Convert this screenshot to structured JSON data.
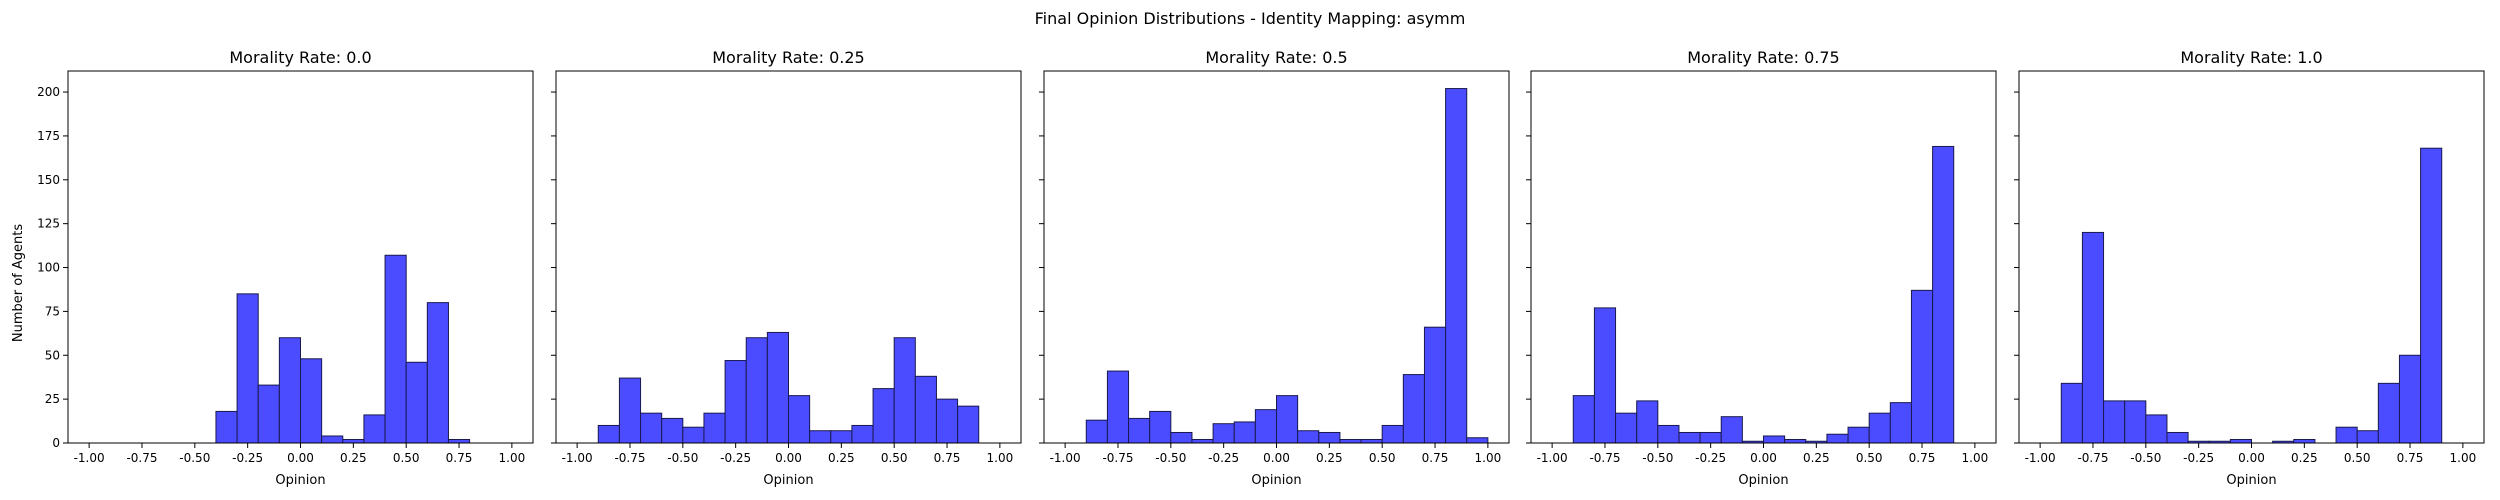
{
  "suptitle": "Final Opinion Distributions - Identity Mapping: asymm",
  "colors": {
    "bar_fill": "#4b4bff",
    "bar_edge": "#1a1a4d",
    "axis": "#000000"
  },
  "shared_ylabel": "Number of Agents",
  "chart_data": [
    {
      "type": "bar",
      "title": "Morality Rate: 0.0",
      "xlabel": "Opinion",
      "ylabel": "Number of Agents",
      "xlim": [
        -1.1,
        1.1
      ],
      "ylim": [
        0,
        212
      ],
      "xticks": [
        "-1.00",
        "-0.75",
        "-0.50",
        "-0.25",
        "0.00",
        "0.25",
        "0.50",
        "0.75",
        "1.00"
      ],
      "yticks": [
        "0",
        "25",
        "50",
        "75",
        "100",
        "125",
        "150",
        "175",
        "200"
      ],
      "bin_width": 0.1,
      "bins": [
        [
          -0.4,
          18
        ],
        [
          -0.3,
          85
        ],
        [
          -0.2,
          33
        ],
        [
          -0.1,
          60
        ],
        [
          0.0,
          48
        ],
        [
          0.1,
          4
        ],
        [
          0.2,
          2
        ],
        [
          0.3,
          16
        ],
        [
          0.4,
          107
        ],
        [
          0.5,
          46
        ],
        [
          0.6,
          80
        ],
        [
          0.7,
          2
        ]
      ]
    },
    {
      "type": "bar",
      "title": "Morality Rate: 0.25",
      "xlabel": "Opinion",
      "xlim": [
        -1.1,
        1.1
      ],
      "ylim": [
        0,
        212
      ],
      "xticks": [
        "-1.00",
        "-0.75",
        "-0.50",
        "-0.25",
        "0.00",
        "0.25",
        "0.50",
        "0.75",
        "1.00"
      ],
      "yticks": [
        "0",
        "25",
        "50",
        "75",
        "100",
        "125",
        "150",
        "175",
        "200"
      ],
      "bin_width": 0.1,
      "bins": [
        [
          -0.9,
          10
        ],
        [
          -0.8,
          37
        ],
        [
          -0.7,
          17
        ],
        [
          -0.6,
          14
        ],
        [
          -0.5,
          9
        ],
        [
          -0.4,
          17
        ],
        [
          -0.3,
          47
        ],
        [
          -0.2,
          60
        ],
        [
          -0.1,
          63
        ],
        [
          0.0,
          27
        ],
        [
          0.1,
          7
        ],
        [
          0.2,
          7
        ],
        [
          0.3,
          10
        ],
        [
          0.4,
          31
        ],
        [
          0.5,
          60
        ],
        [
          0.6,
          38
        ],
        [
          0.7,
          25
        ],
        [
          0.8,
          21
        ]
      ]
    },
    {
      "type": "bar",
      "title": "Morality Rate: 0.5",
      "xlabel": "Opinion",
      "xlim": [
        -1.1,
        1.1
      ],
      "ylim": [
        0,
        212
      ],
      "xticks": [
        "-1.00",
        "-0.75",
        "-0.50",
        "-0.25",
        "0.00",
        "0.25",
        "0.50",
        "0.75",
        "1.00"
      ],
      "yticks": [
        "0",
        "25",
        "50",
        "75",
        "100",
        "125",
        "150",
        "175",
        "200"
      ],
      "bin_width": 0.1,
      "bins": [
        [
          -0.9,
          13
        ],
        [
          -0.8,
          41
        ],
        [
          -0.7,
          14
        ],
        [
          -0.6,
          18
        ],
        [
          -0.5,
          6
        ],
        [
          -0.4,
          2
        ],
        [
          -0.3,
          11
        ],
        [
          -0.2,
          12
        ],
        [
          -0.1,
          19
        ],
        [
          0.0,
          27
        ],
        [
          0.1,
          7
        ],
        [
          0.2,
          6
        ],
        [
          0.3,
          2
        ],
        [
          0.4,
          2
        ],
        [
          0.5,
          10
        ],
        [
          0.6,
          39
        ],
        [
          0.7,
          66
        ],
        [
          0.8,
          202
        ],
        [
          0.9,
          3
        ]
      ]
    },
    {
      "type": "bar",
      "title": "Morality Rate: 0.75",
      "xlabel": "Opinion",
      "xlim": [
        -1.1,
        1.1
      ],
      "ylim": [
        0,
        212
      ],
      "xticks": [
        "-1.00",
        "-0.75",
        "-0.50",
        "-0.25",
        "0.00",
        "0.25",
        "0.50",
        "0.75",
        "1.00"
      ],
      "yticks": [
        "0",
        "25",
        "50",
        "75",
        "100",
        "125",
        "150",
        "175",
        "200"
      ],
      "bin_width": 0.1,
      "bins": [
        [
          -0.9,
          27
        ],
        [
          -0.8,
          77
        ],
        [
          -0.7,
          17
        ],
        [
          -0.6,
          24
        ],
        [
          -0.5,
          10
        ],
        [
          -0.4,
          6
        ],
        [
          -0.3,
          6
        ],
        [
          -0.2,
          15
        ],
        [
          -0.1,
          1
        ],
        [
          0.0,
          4
        ],
        [
          0.1,
          2
        ],
        [
          0.2,
          1
        ],
        [
          0.3,
          5
        ],
        [
          0.4,
          9
        ],
        [
          0.5,
          17
        ],
        [
          0.6,
          23
        ],
        [
          0.7,
          87
        ],
        [
          0.8,
          169
        ]
      ]
    },
    {
      "type": "bar",
      "title": "Morality Rate: 1.0",
      "xlabel": "Opinion",
      "xlim": [
        -1.1,
        1.1
      ],
      "ylim": [
        0,
        212
      ],
      "xticks": [
        "-1.00",
        "-0.75",
        "-0.50",
        "-0.25",
        "0.00",
        "0.25",
        "0.50",
        "0.75",
        "1.00"
      ],
      "yticks": [
        "0",
        "25",
        "50",
        "75",
        "100",
        "125",
        "150",
        "175",
        "200"
      ],
      "bin_width": 0.1,
      "bins": [
        [
          -0.9,
          34
        ],
        [
          -0.8,
          120
        ],
        [
          -0.7,
          24
        ],
        [
          -0.6,
          24
        ],
        [
          -0.5,
          16
        ],
        [
          -0.4,
          6
        ],
        [
          -0.3,
          1
        ],
        [
          -0.2,
          1
        ],
        [
          -0.1,
          2
        ],
        [
          0.1,
          1
        ],
        [
          0.2,
          2
        ],
        [
          0.4,
          9
        ],
        [
          0.5,
          7
        ],
        [
          0.6,
          34
        ],
        [
          0.7,
          50
        ],
        [
          0.8,
          168
        ]
      ]
    }
  ]
}
